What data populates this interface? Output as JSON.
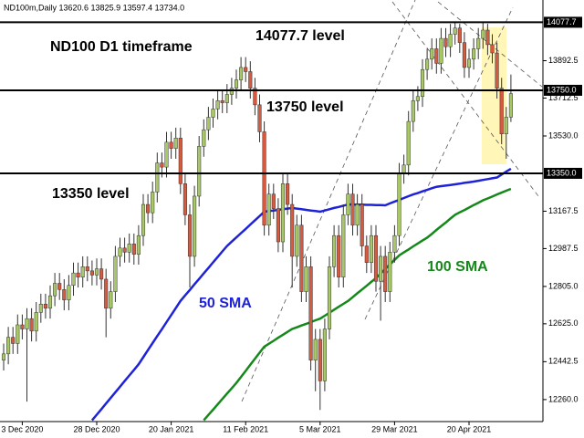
{
  "chart_data": {
    "type": "candlestick",
    "title": "ND100m,Daily  13620.6 13825.9 13597.4 13734.0",
    "annotations": [
      "ND100 D1 timeframe",
      "14077.7 level",
      "13750 level",
      "13350 level"
    ],
    "categories": [
      null,
      null,
      null,
      null,
      "3 Dec 2020",
      null,
      null,
      null,
      null,
      null,
      null,
      null,
      null,
      null,
      null,
      null,
      null,
      null,
      null,
      null,
      "28 Dec 2020",
      null,
      null,
      null,
      null,
      null,
      null,
      null,
      null,
      null,
      null,
      null,
      null,
      null,
      null,
      null,
      "20 Jan 2021",
      null,
      null,
      null,
      null,
      null,
      null,
      null,
      null,
      null,
      null,
      null,
      null,
      null,
      null,
      null,
      "11 Feb 2021",
      null,
      null,
      null,
      null,
      null,
      null,
      null,
      null,
      null,
      null,
      null,
      null,
      null,
      null,
      null,
      "5 Mar 2021",
      null,
      null,
      null,
      null,
      null,
      null,
      null,
      null,
      null,
      null,
      null,
      null,
      null,
      null,
      null,
      "29 Mar 2021",
      null,
      null,
      null,
      null,
      null,
      null,
      null,
      null,
      null,
      null,
      null,
      null,
      null,
      null,
      null,
      "20 Apr 2021",
      null,
      null,
      null,
      null,
      null,
      null,
      null,
      null,
      null
    ],
    "open": [
      12450,
      12480,
      12560,
      12530,
      12620,
      12600,
      12650,
      12590,
      12680,
      12720,
      12700,
      12760,
      12820,
      12790,
      12740,
      12810,
      12870,
      12850,
      12900,
      12880,
      12860,
      12890,
      12840,
      12700,
      12780,
      12950,
      12990,
      12970,
      13010,
      12960,
      13050,
      13200,
      13160,
      13260,
      13400,
      13380,
      13500,
      13470,
      13520,
      13300,
      13150,
      12950,
      13240,
      13480,
      13560,
      13620,
      13660,
      13700,
      13690,
      13730,
      13760,
      13800,
      13860,
      13840,
      13760,
      13680,
      13550,
      13100,
      13250,
      13180,
      13020,
      13300,
      13200,
      12950,
      13100,
      12780,
      12900,
      12450,
      12550,
      12350,
      12600,
      12900,
      13050,
      12850,
      13150,
      13250,
      13100,
      13200,
      13000,
      12920,
      13050,
      12830,
      12950,
      12780,
      12970,
      13050,
      13350,
      13390,
      13600,
      13700,
      13720,
      13850,
      13900,
      13950,
      13880,
      14000,
      13960,
      14020,
      14050,
      13980,
      13860,
      13900,
      13950,
      14000,
      14040,
      13970,
      13930,
      13760,
      13540,
      13620.6
    ],
    "high": [
      12530,
      12610,
      12610,
      12670,
      12670,
      12700,
      12700,
      12730,
      12770,
      12770,
      12810,
      12870,
      12870,
      12840,
      12860,
      12920,
      12920,
      12950,
      12950,
      12930,
      12940,
      12940,
      12890,
      12830,
      13000,
      13040,
      13040,
      13060,
      13060,
      13100,
      13250,
      13250,
      13310,
      13450,
      13450,
      13550,
      13550,
      13570,
      13570,
      13350,
      13200,
      13290,
      13530,
      13610,
      13670,
      13710,
      13750,
      13750,
      13780,
      13810,
      13850,
      13910,
      13910,
      13890,
      13810,
      13730,
      13600,
      13300,
      13300,
      13230,
      13350,
      13350,
      13250,
      13150,
      13150,
      12950,
      12950,
      12600,
      12600,
      12650,
      12950,
      13100,
      13100,
      13200,
      13300,
      13300,
      13250,
      13250,
      13050,
      13100,
      13100,
      13000,
      13000,
      13020,
      13100,
      13400,
      13440,
      13650,
      13750,
      13770,
      13900,
      13950,
      14000,
      14000,
      14050,
      14050,
      14070,
      14080,
      14070,
      14030,
      13950,
      14000,
      14050,
      14075,
      14070,
      14020,
      13980,
      13810,
      13670,
      13825.9
    ],
    "low": [
      12400,
      12430,
      12480,
      12480,
      12550,
      12250,
      12540,
      12540,
      12630,
      12650,
      12650,
      12710,
      12740,
      12690,
      12690,
      12760,
      12800,
      12800,
      12830,
      12810,
      12810,
      12790,
      12560,
      12650,
      12730,
      12900,
      12920,
      12920,
      12910,
      12910,
      13000,
      13110,
      13110,
      13210,
      13330,
      13330,
      13420,
      13420,
      13250,
      13100,
      12800,
      12900,
      13190,
      13430,
      13510,
      13570,
      13610,
      13640,
      13640,
      13680,
      13710,
      13750,
      13790,
      13710,
      13630,
      13500,
      13050,
      13050,
      13130,
      12970,
      12970,
      13150,
      12800,
      12900,
      12730,
      12730,
      12400,
      12300,
      12210,
      12300,
      12550,
      12850,
      12800,
      12800,
      13100,
      13050,
      13050,
      12950,
      12870,
      12870,
      12780,
      12640,
      12730,
      12730,
      12920,
      13000,
      13300,
      13340,
      13550,
      13650,
      13670,
      13800,
      13850,
      13830,
      13830,
      13910,
      13910,
      13970,
      13930,
      13810,
      13810,
      13850,
      13900,
      13950,
      13920,
      13880,
      13710,
      13490,
      13420,
      13597.4
    ],
    "close": [
      12480,
      12560,
      12530,
      12620,
      12600,
      12650,
      12590,
      12680,
      12720,
      12700,
      12760,
      12820,
      12790,
      12740,
      12810,
      12870,
      12850,
      12900,
      12880,
      12860,
      12890,
      12840,
      12700,
      12780,
      12950,
      12990,
      12970,
      13010,
      12960,
      13050,
      13200,
      13160,
      13260,
      13400,
      13380,
      13500,
      13470,
      13520,
      13300,
      13150,
      12950,
      13240,
      13480,
      13560,
      13620,
      13660,
      13700,
      13690,
      13730,
      13760,
      13800,
      13860,
      13840,
      13760,
      13680,
      13550,
      13100,
      13250,
      13180,
      13020,
      13300,
      13200,
      12950,
      13100,
      12780,
      12900,
      12450,
      12550,
      12350,
      12600,
      12900,
      13050,
      12850,
      13150,
      13250,
      13100,
      13200,
      13000,
      12920,
      13050,
      12830,
      12950,
      12780,
      12970,
      13050,
      13350,
      13390,
      13600,
      13700,
      13720,
      13850,
      13900,
      13950,
      13880,
      14000,
      13960,
      14020,
      14050,
      13980,
      13860,
      13900,
      13950,
      14000,
      14040,
      13970,
      13930,
      13760,
      13540,
      13620.6,
      13734
    ],
    "up_color": "#a8c868",
    "down_color": "#d65a40",
    "series": [
      {
        "name": "50 SMA",
        "color": "#1e22d8",
        "values": [
          null,
          null,
          null,
          null,
          null,
          null,
          null,
          null,
          null,
          null,
          null,
          null,
          null,
          null,
          null,
          null,
          null,
          null,
          null,
          12160,
          12187,
          12214,
          12241,
          12268,
          12295,
          12322,
          12349,
          12376,
          12403,
          12430,
          12464,
          12498,
          12532,
          12566,
          12599,
          12633,
          12667,
          12701,
          12735,
          12762,
          12788,
          12815,
          12841,
          12868,
          12894,
          12921,
          12947,
          12974,
          13000,
          13021,
          13041,
          13062,
          13082,
          13103,
          13124,
          13144,
          13165,
          13168,
          13171,
          13174,
          13177,
          13180,
          13183,
          13180,
          13177,
          13174,
          13171,
          13168,
          13165,
          13171,
          13177,
          13183,
          13188,
          13194,
          13200,
          13200,
          13199,
          13199,
          13198,
          13198,
          13197,
          13197,
          13196,
          13205,
          13214,
          13222,
          13231,
          13240,
          13248,
          13255,
          13263,
          13270,
          13278,
          13285,
          13288,
          13291,
          13294,
          13297,
          13300,
          13304,
          13307,
          13310,
          13314,
          13318,
          13322,
          13326,
          13330,
          13344,
          13358,
          13372
        ]
      },
      {
        "name": "100 SMA",
        "color": "#15881a",
        "values": [
          null,
          null,
          null,
          null,
          null,
          null,
          null,
          null,
          null,
          null,
          null,
          null,
          null,
          null,
          null,
          null,
          null,
          null,
          null,
          null,
          null,
          null,
          null,
          null,
          null,
          null,
          null,
          null,
          null,
          null,
          null,
          null,
          null,
          null,
          null,
          null,
          null,
          null,
          null,
          null,
          null,
          null,
          null,
          12160,
          12186,
          12211,
          12237,
          12263,
          12289,
          12314,
          12340,
          12369,
          12398,
          12428,
          12457,
          12486,
          12515,
          12529,
          12543,
          12558,
          12572,
          12586,
          12600,
          12608,
          12617,
          12625,
          12633,
          12642,
          12650,
          12664,
          12678,
          12693,
          12707,
          12721,
          12735,
          12753,
          12772,
          12790,
          12808,
          12827,
          12845,
          12867,
          12889,
          12911,
          12933,
          12955,
          12969,
          12983,
          12998,
          13012,
          13026,
          13040,
          13058,
          13077,
          13095,
          13113,
          13132,
          13150,
          13162,
          13173,
          13185,
          13197,
          13208,
          13220,
          13229,
          13238,
          13248,
          13257,
          13266,
          13275
        ]
      }
    ],
    "levels": [
      {
        "value": 14077.7,
        "label": "14077.7"
      },
      {
        "value": 13750,
        "label": "13750.0"
      },
      {
        "value": 13350,
        "label": "13350.0"
      }
    ],
    "ylim": [
      12154,
      14185
    ],
    "yticks": [
      13892.5,
      13712.5,
      {
        "value": 13530,
        "label": "13530.0"
      },
      13167.5,
      12987.5,
      {
        "value": 12805,
        "label": "12805.0"
      },
      {
        "value": 12625,
        "label": "12625.0"
      },
      12442.5,
      {
        "value": 12260,
        "label": "12260.0"
      }
    ]
  }
}
